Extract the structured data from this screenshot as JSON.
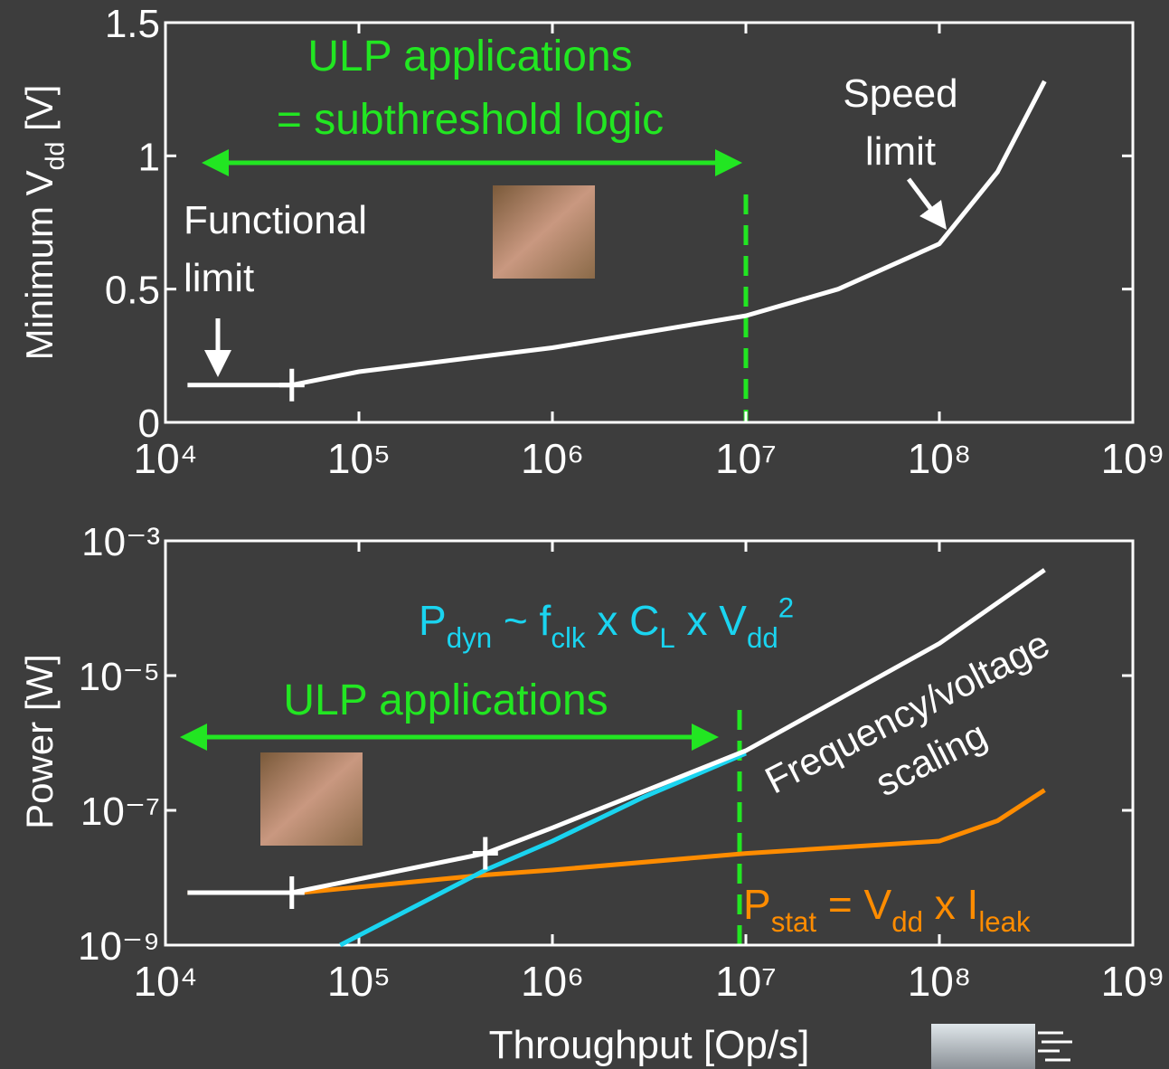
{
  "chart_data": [
    {
      "type": "line",
      "xscale": "log",
      "yscale": "linear",
      "ylabel": [
        [
          "Minimum V",
          {
            "sub": "dd"
          },
          " [V]"
        ]
      ],
      "xlim": [
        10000,
        1000000000
      ],
      "xticks": [
        {
          "value": 10000,
          "label": "10⁴"
        },
        {
          "value": 100000,
          "label": "10⁵"
        },
        {
          "value": 1000000,
          "label": "10⁶"
        },
        {
          "value": 10000000,
          "label": "10⁷"
        },
        {
          "value": 100000000,
          "label": "10⁸"
        },
        {
          "value": 1000000000,
          "label": "10⁹"
        }
      ],
      "ylim": [
        0,
        1.5
      ],
      "yticks": [
        0,
        0.5,
        1,
        1.5
      ],
      "series": [
        {
          "color": "#ffffff",
          "x": [
            13000,
            45000,
            100000,
            1000000,
            10000000,
            30000000,
            100000000,
            200000000,
            350000000
          ],
          "values": [
            0.14,
            0.14,
            0.19,
            0.28,
            0.4,
            0.5,
            0.67,
            0.94,
            1.28
          ],
          "markers": {
            "x": [
              45000
            ],
            "values": [
              0.14
            ]
          }
        }
      ],
      "annotations": [
        {
          "color": "#22e622",
          "lines": [
            [
              "ULP applications"
            ],
            [
              "= subthreshold logic"
            ]
          ]
        },
        {
          "color": "#ffffff",
          "lines": [
            [
              "Speed"
            ],
            [
              "limit"
            ]
          ]
        },
        {
          "color": "#ffffff",
          "lines": [
            [
              "Functional"
            ],
            [
              "limit"
            ]
          ]
        }
      ]
    },
    {
      "type": "line",
      "xscale": "log",
      "yscale": "log",
      "ylabel": [
        [
          "Power [W]"
        ]
      ],
      "xlabel": "Throughput [Op/s]",
      "xlim": [
        10000,
        1000000000
      ],
      "xticks": [
        {
          "value": 10000,
          "label": "10⁴"
        },
        {
          "value": 100000,
          "label": "10⁵"
        },
        {
          "value": 1000000,
          "label": "10⁶"
        },
        {
          "value": 10000000,
          "label": "10⁷"
        },
        {
          "value": 100000000,
          "label": "10⁸"
        },
        {
          "value": 1000000000,
          "label": "10⁹"
        }
      ],
      "ylim": [
        1e-09,
        0.001
      ],
      "yticks": [
        {
          "value": 1e-09,
          "label": "10⁻⁹"
        },
        {
          "value": 1e-07,
          "label": "10⁻⁷"
        },
        {
          "value": 1e-05,
          "label": "10⁻⁵"
        },
        {
          "value": 0.001,
          "label": "10⁻³"
        }
      ],
      "series": [
        {
          "color": "#ff8c00",
          "x": [
            13000,
            50000,
            450000,
            1000000,
            10000000,
            100000000,
            200000000,
            350000000
          ],
          "values": [
            6e-09,
            6e-09,
            1.1e-08,
            1.3e-08,
            2.3e-08,
            3.5e-08,
            7e-08,
            2e-07
          ]
        },
        {
          "color": "#1ad4f0",
          "x": [
            80000,
            450000,
            1000000,
            3000000,
            10000000
          ],
          "values": [
            1e-09,
            1.3e-08,
            3.5e-08,
            1.6e-07,
            7e-07
          ]
        },
        {
          "color": "#ffffff",
          "x": [
            13000,
            45000,
            450000,
            1000000,
            10000000,
            100000000,
            350000000
          ],
          "values": [
            6e-09,
            6e-09,
            2.3e-08,
            5.5e-08,
            7.7e-07,
            3e-05,
            0.00037
          ],
          "markers": {
            "x": [
              45000,
              450000
            ],
            "values": [
              6e-09,
              2.3e-08
            ]
          }
        }
      ],
      "annotations": [
        {
          "color": "#22e622",
          "lines": [
            [
              "ULP applications"
            ]
          ]
        },
        {
          "color": "#1ad4f0",
          "lines": [
            [
              "P",
              {
                "sub": "dyn"
              },
              " ~ f",
              {
                "sub": "clk"
              },
              " x C",
              {
                "sub": "L"
              },
              " x V",
              {
                "sub": "dd"
              },
              {
                "sup": "2"
              }
            ]
          ]
        },
        {
          "color": "#ffffff",
          "lines": [
            [
              "Frequency/voltage"
            ],
            [
              "scaling"
            ]
          ]
        },
        {
          "color": "#ff8c00",
          "lines": [
            [
              "P",
              {
                "sub": "stat"
              },
              " = V",
              {
                "sub": "dd"
              },
              " x I",
              {
                "sub": "leak"
              }
            ]
          ]
        }
      ]
    }
  ]
}
